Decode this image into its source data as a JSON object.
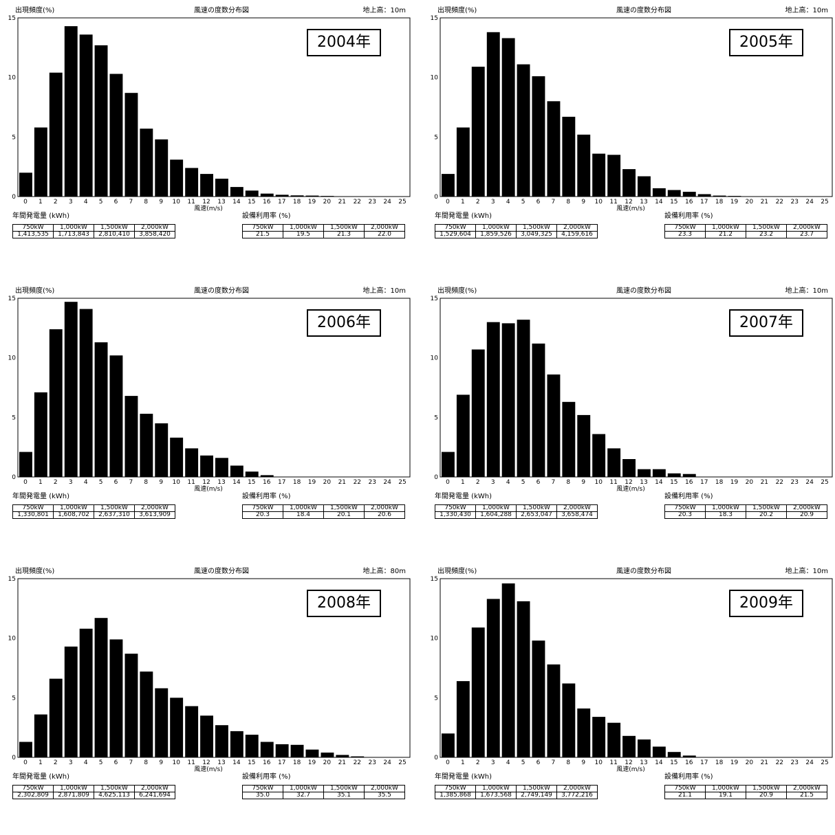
{
  "common": {
    "y_label": "出現頻度(%)",
    "title": "風速の度数分布図",
    "x_label": "風速(m/s)",
    "annual_label": "年間発電量 (kWh)",
    "util_label": "設備利用率 (%)",
    "turbines": [
      "750kW",
      "1,000kW",
      "1,500kW",
      "2,000kW"
    ]
  },
  "panels": [
    {
      "year_label": "2004年",
      "height_label": "地上高：10m",
      "energy": [
        "1,413,535",
        "1,713,843",
        "2,810,410",
        "3,858,420"
      ],
      "util": [
        "21.5",
        "19.5",
        "21.3",
        "22.0"
      ]
    },
    {
      "year_label": "2005年",
      "height_label": "地上高：10m",
      "energy": [
        "1,529,604",
        "1,859,526",
        "3,049,325",
        "4,159,616"
      ],
      "util": [
        "23.3",
        "21.2",
        "23.2",
        "23.7"
      ]
    },
    {
      "year_label": "2006年",
      "height_label": "地上高：10m",
      "energy": [
        "1,330,801",
        "1,608,702",
        "2,637,310",
        "3,613,909"
      ],
      "util": [
        "20.3",
        "18.4",
        "20.1",
        "20.6"
      ]
    },
    {
      "year_label": "2007年",
      "height_label": "地上高：10m",
      "energy": [
        "1,330,430",
        "1,604,288",
        "2,653,047",
        "3,658,474"
      ],
      "util": [
        "20.3",
        "18.3",
        "20.2",
        "20.9"
      ]
    },
    {
      "year_label": "2008年",
      "height_label": "地上高：80m",
      "energy": [
        "2,302,809",
        "2,871,809",
        "4,625,113",
        "6,241,694"
      ],
      "util": [
        "35.0",
        "32.7",
        "35.1",
        "35.5"
      ]
    },
    {
      "year_label": "2009年",
      "height_label": "地上高：10m",
      "energy": [
        "1,385,868",
        "1,673,568",
        "2,749,149",
        "3,772,216"
      ],
      "util": [
        "21.1",
        "19.1",
        "20.9",
        "21.5"
      ]
    }
  ],
  "chart_data": [
    {
      "type": "bar",
      "title": "風速の度数分布図",
      "xlabel": "風速(m/s)",
      "ylabel": "出現頻度(%)",
      "ylim": [
        0,
        15
      ],
      "yticks": [
        0,
        5,
        10,
        15
      ],
      "x": [
        0,
        1,
        2,
        3,
        4,
        5,
        6,
        7,
        8,
        9,
        10,
        11,
        12,
        13,
        14,
        15,
        16,
        17,
        18,
        19,
        20,
        21,
        22,
        23,
        24,
        25
      ],
      "values": [
        2.0,
        5.8,
        10.4,
        14.3,
        13.6,
        12.7,
        10.3,
        8.7,
        5.7,
        4.8,
        3.1,
        2.4,
        1.9,
        1.5,
        0.8,
        0.5,
        0.25,
        0.15,
        0.1,
        0.08,
        0.05,
        0.03,
        0,
        0,
        0,
        0
      ]
    },
    {
      "type": "bar",
      "title": "風速の度数分布図",
      "xlabel": "風速(m/s)",
      "ylabel": "出現頻度(%)",
      "ylim": [
        0,
        15
      ],
      "yticks": [
        0,
        5,
        10,
        15
      ],
      "x": [
        0,
        1,
        2,
        3,
        4,
        5,
        6,
        7,
        8,
        9,
        10,
        11,
        12,
        13,
        14,
        15,
        16,
        17,
        18,
        19,
        20,
        21,
        22,
        23,
        24,
        25
      ],
      "values": [
        1.9,
        5.8,
        10.9,
        13.8,
        13.3,
        11.1,
        10.1,
        8.0,
        6.7,
        5.2,
        3.6,
        3.5,
        2.3,
        1.7,
        0.7,
        0.55,
        0.4,
        0.2,
        0.08,
        0.05,
        0,
        0,
        0,
        0,
        0,
        0
      ]
    },
    {
      "type": "bar",
      "title": "風速の度数分布図",
      "xlabel": "風速(m/s)",
      "ylabel": "出現頻度(%)",
      "ylim": [
        0,
        15
      ],
      "yticks": [
        0,
        5,
        10,
        15
      ],
      "x": [
        0,
        1,
        2,
        3,
        4,
        5,
        6,
        7,
        8,
        9,
        10,
        11,
        12,
        13,
        14,
        15,
        16,
        17,
        18,
        19,
        20,
        21,
        22,
        23,
        24,
        25
      ],
      "values": [
        2.1,
        7.1,
        12.4,
        14.7,
        14.1,
        11.3,
        10.2,
        6.8,
        5.3,
        4.5,
        3.3,
        2.4,
        1.8,
        1.6,
        0.95,
        0.45,
        0.15,
        0,
        0,
        0,
        0,
        0,
        0,
        0,
        0,
        0
      ]
    },
    {
      "type": "bar",
      "title": "風速の度数分布図",
      "xlabel": "風速(m/s)",
      "ylabel": "出現頻度(%)",
      "ylim": [
        0,
        15
      ],
      "yticks": [
        0,
        5,
        10,
        15
      ],
      "x": [
        0,
        1,
        2,
        3,
        4,
        5,
        6,
        7,
        8,
        9,
        10,
        11,
        12,
        13,
        14,
        15,
        16,
        17,
        18,
        19,
        20,
        21,
        22,
        23,
        24,
        25
      ],
      "values": [
        2.1,
        6.9,
        10.7,
        13.0,
        12.9,
        13.2,
        11.2,
        8.6,
        6.3,
        5.2,
        3.6,
        2.4,
        1.5,
        0.65,
        0.65,
        0.3,
        0.25,
        0,
        0,
        0,
        0,
        0,
        0,
        0,
        0,
        0
      ]
    },
    {
      "type": "bar",
      "title": "風速の度数分布図",
      "xlabel": "風速(m/s)",
      "ylabel": "出現頻度(%)",
      "ylim": [
        0,
        15
      ],
      "yticks": [
        0,
        5,
        10,
        15
      ],
      "x": [
        0,
        1,
        2,
        3,
        4,
        5,
        6,
        7,
        8,
        9,
        10,
        11,
        12,
        13,
        14,
        15,
        16,
        17,
        18,
        19,
        20,
        21,
        22,
        23,
        24,
        25
      ],
      "values": [
        1.3,
        3.6,
        6.6,
        9.3,
        10.8,
        11.7,
        9.9,
        8.7,
        7.2,
        5.8,
        5.0,
        4.3,
        3.5,
        2.7,
        2.2,
        1.9,
        1.3,
        1.1,
        1.05,
        0.65,
        0.4,
        0.2,
        0.08,
        0,
        0,
        0
      ]
    },
    {
      "type": "bar",
      "title": "風速の度数分布図",
      "xlabel": "風速(m/s)",
      "ylabel": "出現頻度(%)",
      "ylim": [
        0,
        15
      ],
      "yticks": [
        0,
        5,
        10,
        15
      ],
      "x": [
        0,
        1,
        2,
        3,
        4,
        5,
        6,
        7,
        8,
        9,
        10,
        11,
        12,
        13,
        14,
        15,
        16,
        17,
        18,
        19,
        20,
        21,
        22,
        23,
        24,
        25
      ],
      "values": [
        2.0,
        6.4,
        10.9,
        13.3,
        14.6,
        13.1,
        9.8,
        7.8,
        6.2,
        4.1,
        3.4,
        2.9,
        1.8,
        1.5,
        0.9,
        0.45,
        0.15,
        0,
        0,
        0,
        0,
        0,
        0,
        0,
        0,
        0
      ]
    }
  ]
}
